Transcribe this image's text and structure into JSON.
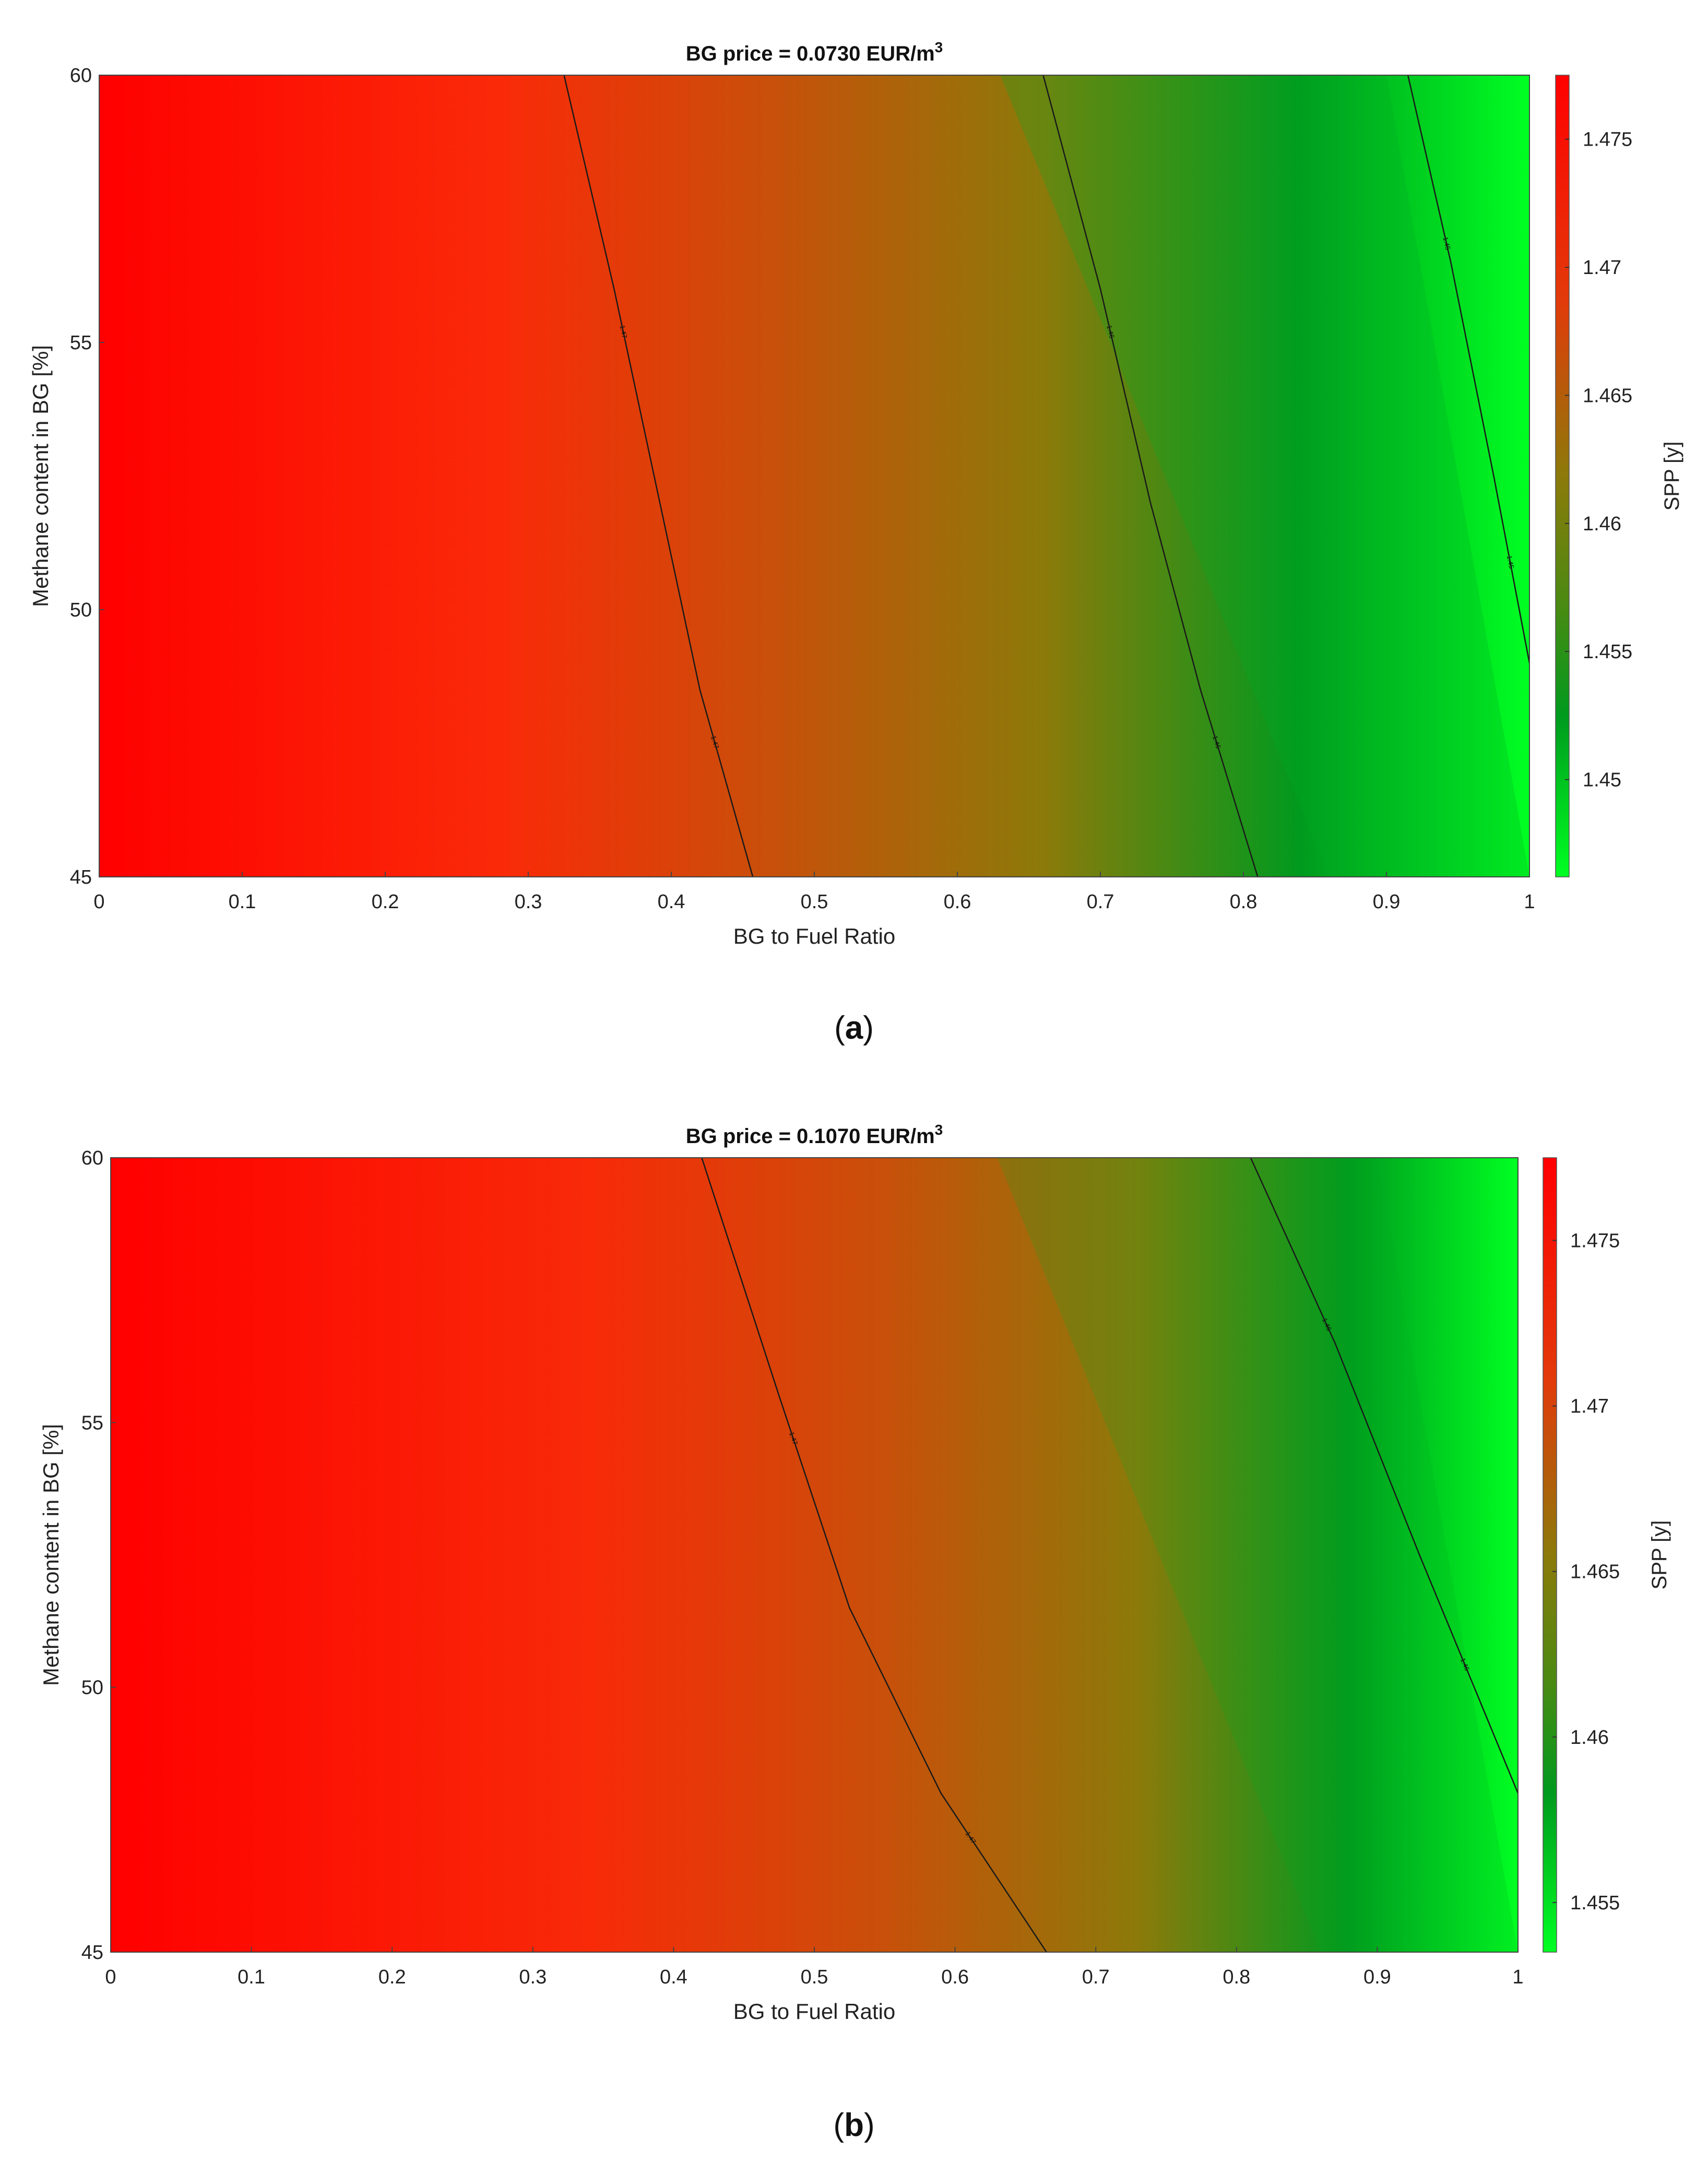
{
  "panels": [
    {
      "label": "a",
      "chart_data": {
        "type": "heatmap",
        "title_prefix": "BG price = 0.0730 EUR/m",
        "title_superscript": "3",
        "xlabel": "BG to Fuel Ratio",
        "ylabel": "Methane content in BG [%]",
        "colorbar_label": "SPP [y]",
        "xlim": [
          0,
          1
        ],
        "ylim": [
          45,
          60
        ],
        "x_ticks": [
          "0",
          "0.1",
          "0.2",
          "0.3",
          "0.4",
          "0.5",
          "0.6",
          "0.7",
          "0.8",
          "0.9",
          "1"
        ],
        "y_ticks": [
          "45",
          "50",
          "55",
          "60"
        ],
        "colorbar_range": [
          1.4462,
          1.4775
        ],
        "colorbar_ticks": [
          "1.45",
          "1.455",
          "1.46",
          "1.465",
          "1.47",
          "1.475"
        ],
        "colors": {
          "high": "#ff0000",
          "mid_high": "#c8500a",
          "mid": "#8c7a0a",
          "mid_low": "#009a1e",
          "low": "#00ff22"
        },
        "contours": [
          {
            "level": 1.47,
            "label": "1.47",
            "points": [
              [
                0.325,
                60
              ],
              [
                0.36,
                56
              ],
              [
                0.392,
                52
              ],
              [
                0.42,
                48.5
              ],
              [
                0.457,
                45
              ]
            ]
          },
          {
            "level": 1.46,
            "label": "1.46",
            "points": [
              [
                0.66,
                60
              ],
              [
                0.7,
                56
              ],
              [
                0.735,
                52
              ],
              [
                0.77,
                48.5
              ],
              [
                0.81,
                45
              ]
            ]
          },
          {
            "level": 1.45,
            "label": "1.45",
            "points": [
              [
                0.915,
                60
              ],
              [
                0.945,
                56.5
              ],
              [
                0.975,
                52.5
              ],
              [
                1.0,
                49
              ]
            ]
          }
        ]
      }
    },
    {
      "label": "b",
      "chart_data": {
        "type": "heatmap",
        "title_prefix": "BG price = 0.1070 EUR/m",
        "title_superscript": "3",
        "xlabel": "BG to Fuel Ratio",
        "ylabel": "Methane content in BG [%]",
        "colorbar_label": "SPP [y]",
        "xlim": [
          0,
          1
        ],
        "ylim": [
          45,
          60
        ],
        "x_ticks": [
          "0",
          "0.1",
          "0.2",
          "0.3",
          "0.4",
          "0.5",
          "0.6",
          "0.7",
          "0.8",
          "0.9",
          "1"
        ],
        "y_ticks": [
          "45",
          "50",
          "55",
          "60"
        ],
        "colorbar_range": [
          1.4535,
          1.4775
        ],
        "colorbar_ticks": [
          "1.455",
          "1.46",
          "1.465",
          "1.47",
          "1.475"
        ],
        "colors": {
          "high": "#ff0000",
          "mid_high": "#c8500a",
          "mid": "#8c7a0a",
          "mid_low": "#009a1e",
          "low": "#00ff22"
        },
        "contours": [
          {
            "level": 1.47,
            "label": "1.47",
            "points": [
              [
                0.42,
                60
              ],
              [
                0.475,
                55.5
              ],
              [
                0.525,
                51.5
              ],
              [
                0.59,
                48
              ],
              [
                0.665,
                45
              ]
            ]
          },
          {
            "level": 1.46,
            "label": "1.46",
            "points": [
              [
                0.81,
                60
              ],
              [
                0.87,
                56.5
              ],
              [
                0.93,
                52.5
              ],
              [
                1.0,
                48
              ]
            ]
          }
        ]
      }
    }
  ]
}
